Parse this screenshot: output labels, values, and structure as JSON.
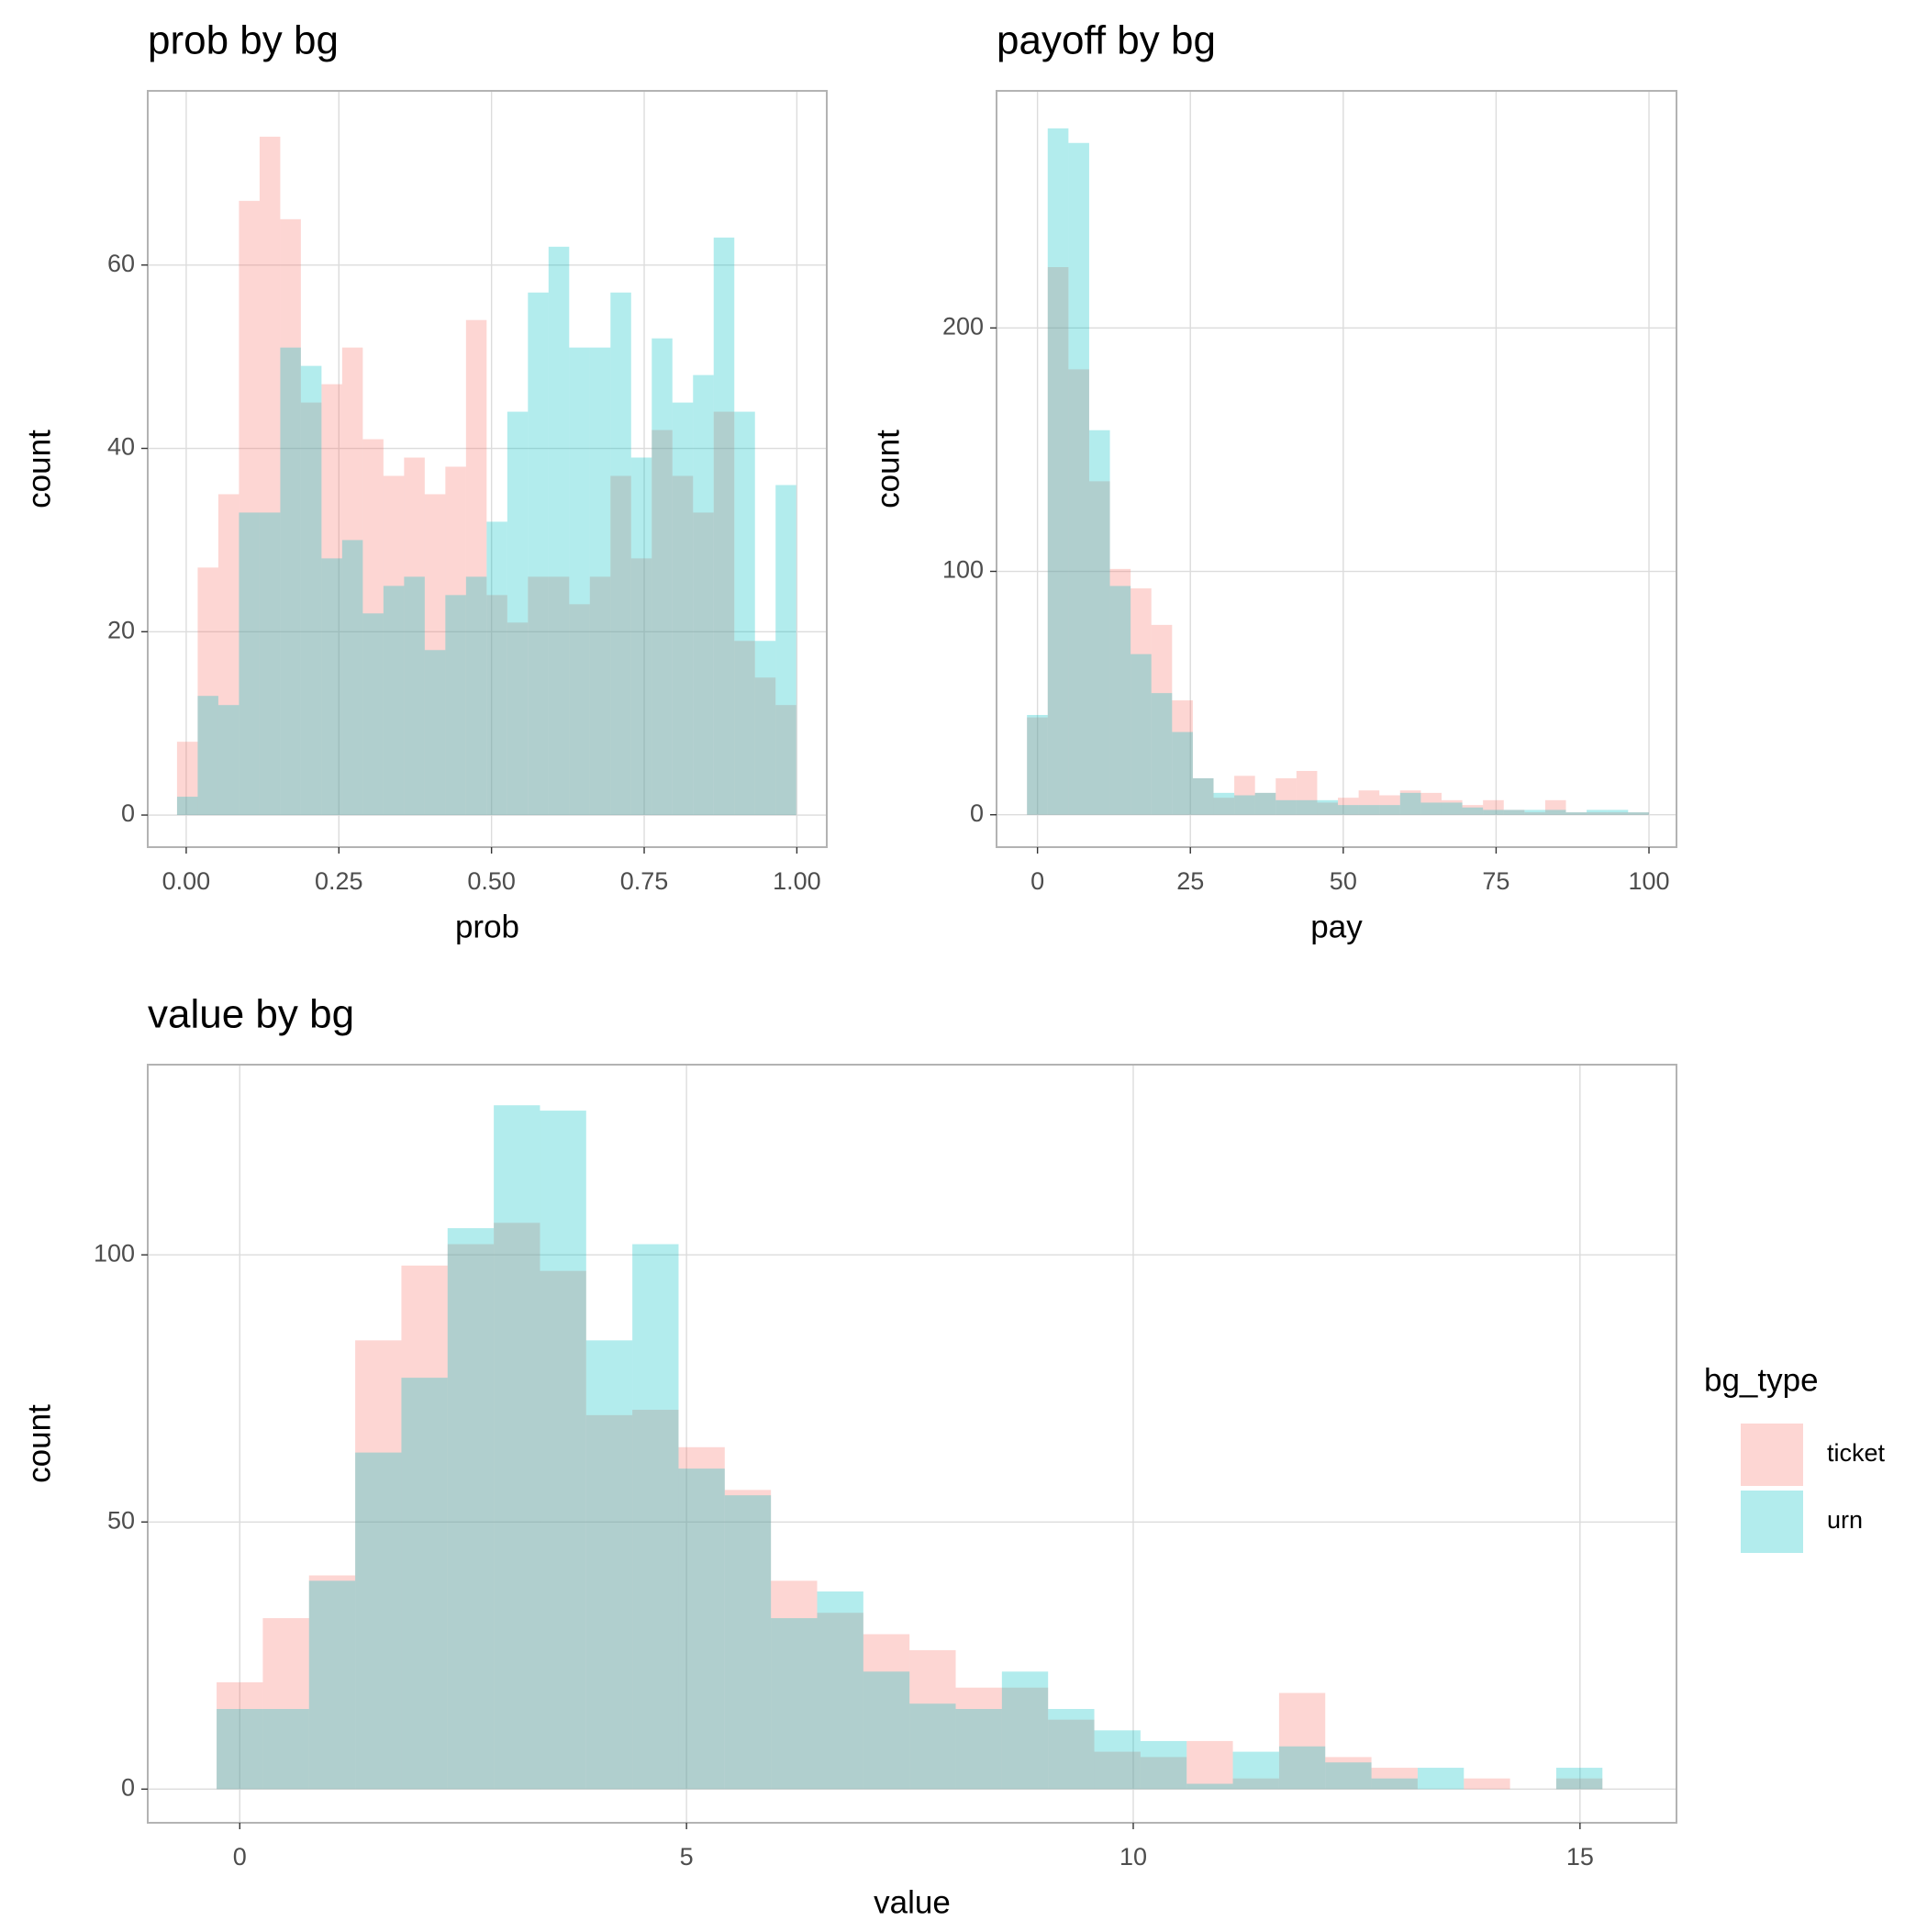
{
  "chart_data": [
    {
      "type": "histogram",
      "title": "prob by bg",
      "x_label": "prob",
      "y_label": "count",
      "bins": [
        -0.015,
        0.0188,
        0.0526,
        0.0864,
        0.1202,
        0.154,
        0.1878,
        0.2216,
        0.2554,
        0.2892,
        0.323,
        0.3568,
        0.3906,
        0.4244,
        0.4582,
        0.492,
        0.5258,
        0.5596,
        0.5934,
        0.6272,
        0.661,
        0.6948,
        0.7286,
        0.7624,
        0.7962,
        0.83,
        0.8638,
        0.8976,
        0.9314,
        0.9652,
        0.999
      ],
      "series": [
        {
          "name": "ticket",
          "color": "#F8766D",
          "values": [
            8,
            27,
            35,
            67,
            74,
            65,
            45,
            47,
            51,
            41,
            37,
            39,
            35,
            38,
            54,
            24,
            21,
            26,
            26,
            23,
            26,
            37,
            28,
            42,
            37,
            33,
            44,
            19,
            15,
            12
          ]
        },
        {
          "name": "urn",
          "color": "#00BFC4",
          "values": [
            2,
            13,
            12,
            33,
            33,
            51,
            49,
            28,
            30,
            22,
            25,
            26,
            18,
            24,
            26,
            32,
            44,
            57,
            62,
            51,
            51,
            57,
            39,
            52,
            45,
            48,
            63,
            44,
            19,
            36
          ]
        }
      ],
      "opacity": 0.3,
      "xlim": [
        -0.063,
        1.049
      ],
      "ylim": [
        -3.5,
        79
      ],
      "xticks": [
        {
          "value": 0,
          "label": "0.00"
        },
        {
          "value": 0.25,
          "label": "0.25"
        },
        {
          "value": 0.5,
          "label": "0.50"
        },
        {
          "value": 0.75,
          "label": "0.75"
        },
        {
          "value": 1,
          "label": "1.00"
        }
      ],
      "yticks": [
        0,
        20,
        40,
        60
      ],
      "grid": true
    },
    {
      "type": "histogram",
      "title": "payoff by bg",
      "x_label": "pay",
      "y_label": "count",
      "bins": [
        -1.72,
        1.67,
        5.06,
        8.45,
        11.84,
        15.23,
        18.62,
        22.01,
        25.4,
        28.79,
        32.18,
        35.57,
        38.96,
        42.35,
        45.74,
        49.13,
        52.52,
        55.91,
        59.3,
        62.69,
        66.08,
        69.47,
        72.86,
        76.25,
        79.64,
        83.03,
        86.42,
        89.81,
        93.2,
        96.59,
        99.98
      ],
      "series": [
        {
          "name": "ticket",
          "color": "#F8766D",
          "values": [
            40,
            225,
            183,
            137,
            101,
            93,
            78,
            47,
            15,
            7,
            16,
            9,
            15,
            18,
            5,
            7,
            10,
            8,
            10,
            9,
            6,
            4,
            6,
            2,
            1,
            6,
            1,
            1,
            1,
            1
          ]
        },
        {
          "name": "urn",
          "color": "#00BFC4",
          "values": [
            41,
            282,
            276,
            158,
            94,
            66,
            50,
            34,
            15,
            9,
            8,
            9,
            6,
            6,
            6,
            4,
            4,
            4,
            9,
            5,
            5,
            3,
            2,
            2,
            2,
            2,
            1,
            2,
            2,
            1
          ]
        }
      ],
      "opacity": 0.3,
      "xlim": [
        -6.7,
        104.5
      ],
      "ylim": [
        -13.3,
        297.4
      ],
      "xticks": [
        0,
        25,
        50,
        75,
        100
      ],
      "yticks": [
        0,
        100,
        200
      ],
      "grid": true
    },
    {
      "type": "histogram",
      "title": "value by bg",
      "x_label": "value",
      "y_label": "count",
      "bins": [
        -0.259,
        0.258,
        0.775,
        1.292,
        1.809,
        2.326,
        2.843,
        3.36,
        3.877,
        4.394,
        4.911,
        5.428,
        5.945,
        6.462,
        6.979,
        7.496,
        8.013,
        8.53,
        9.047,
        9.564,
        10.081,
        10.598,
        11.115,
        11.632,
        12.149,
        12.666,
        13.183,
        13.7,
        14.217,
        14.734,
        15.251
      ],
      "series": [
        {
          "name": "ticket",
          "color": "#F8766D",
          "values": [
            20,
            32,
            40,
            84,
            98,
            102,
            106,
            97,
            70,
            71,
            64,
            56,
            39,
            33,
            29,
            26,
            19,
            19,
            13,
            7,
            6,
            9,
            2,
            18,
            6,
            4,
            0,
            2,
            0,
            2
          ]
        },
        {
          "name": "urn",
          "color": "#00BFC4",
          "values": [
            15,
            15,
            39,
            63,
            77,
            105,
            128,
            127,
            84,
            102,
            60,
            55,
            32,
            37,
            22,
            16,
            15,
            22,
            15,
            11,
            9,
            1,
            7,
            8,
            5,
            2,
            4,
            0,
            0,
            4
          ]
        }
      ],
      "opacity": 0.3,
      "xlim": [
        -1.03,
        16.08
      ],
      "ylim": [
        -6.3,
        135.6
      ],
      "xticks": [
        0,
        5,
        10,
        15
      ],
      "yticks": [
        0,
        50,
        100
      ],
      "grid": true,
      "legend": "right",
      "legend_title": "bg_type"
    }
  ]
}
